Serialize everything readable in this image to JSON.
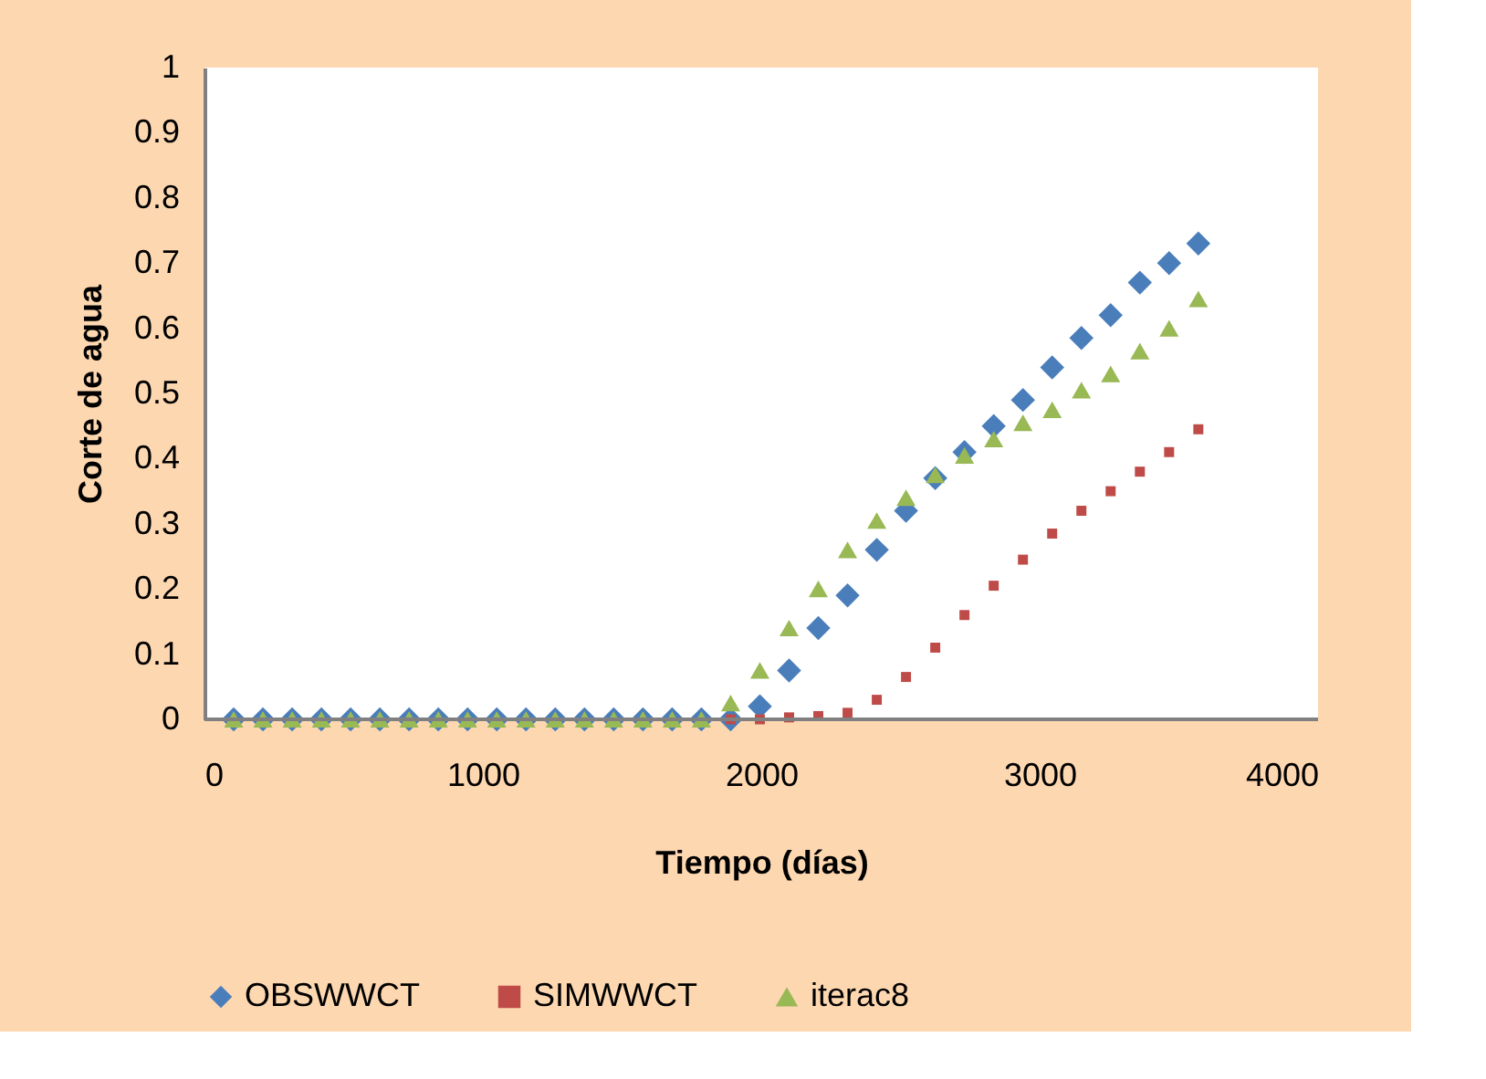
{
  "chart_data": {
    "type": "scatter",
    "xlabel": "Tiempo (días)",
    "ylabel": "Corte de agua",
    "x": [
      105,
      210,
      315,
      420,
      525,
      630,
      735,
      840,
      945,
      1050,
      1155,
      1260,
      1365,
      1470,
      1575,
      1680,
      1785,
      1890,
      1995,
      2100,
      2205,
      2310,
      2415,
      2520,
      2625,
      2730,
      2835,
      2940,
      3045,
      3150,
      3255,
      3360,
      3465,
      3570
    ],
    "xlim": [
      0,
      4000
    ],
    "xticks": [
      0,
      1000,
      2000,
      3000,
      4000
    ],
    "ylim": [
      0,
      1
    ],
    "yticks": [
      0,
      0.1,
      0.2,
      0.3,
      0.4,
      0.5,
      0.6,
      0.7,
      0.8,
      0.9,
      1
    ],
    "grid": false,
    "legend": "bottom",
    "series": [
      {
        "name": "OBSWWCT",
        "color": "#4a7ebb",
        "marker": "diamond",
        "values": [
          0,
          0,
          0,
          0,
          0,
          0,
          0,
          0,
          0,
          0,
          0,
          0,
          0,
          0,
          0,
          0,
          0,
          0,
          0.02,
          0.075,
          0.14,
          0.19,
          0.26,
          0.32,
          0.37,
          0.41,
          0.45,
          0.49,
          0.54,
          0.585,
          0.62,
          0.67,
          0.7,
          0.73
        ]
      },
      {
        "name": "SIMWWCT",
        "color": "#be4b48",
        "marker": "square",
        "values": [
          null,
          null,
          null,
          null,
          null,
          null,
          null,
          null,
          null,
          null,
          null,
          null,
          null,
          null,
          null,
          null,
          null,
          0,
          0,
          0.003,
          0.005,
          0.01,
          0.03,
          0.065,
          0.11,
          0.16,
          0.205,
          0.245,
          0.285,
          0.32,
          0.35,
          0.38,
          0.41,
          0.445
        ]
      },
      {
        "name": "iterac8",
        "color": "#98b954",
        "marker": "triangle",
        "values": [
          0,
          0,
          0,
          0,
          0,
          0,
          0,
          0,
          0,
          0,
          0,
          0,
          0,
          0,
          0,
          0,
          0,
          0.025,
          0.075,
          0.14,
          0.2,
          0.26,
          0.305,
          0.34,
          0.375,
          0.405,
          0.43,
          0.455,
          0.475,
          0.505,
          0.53,
          0.565,
          0.6,
          0.645
        ]
      }
    ]
  }
}
